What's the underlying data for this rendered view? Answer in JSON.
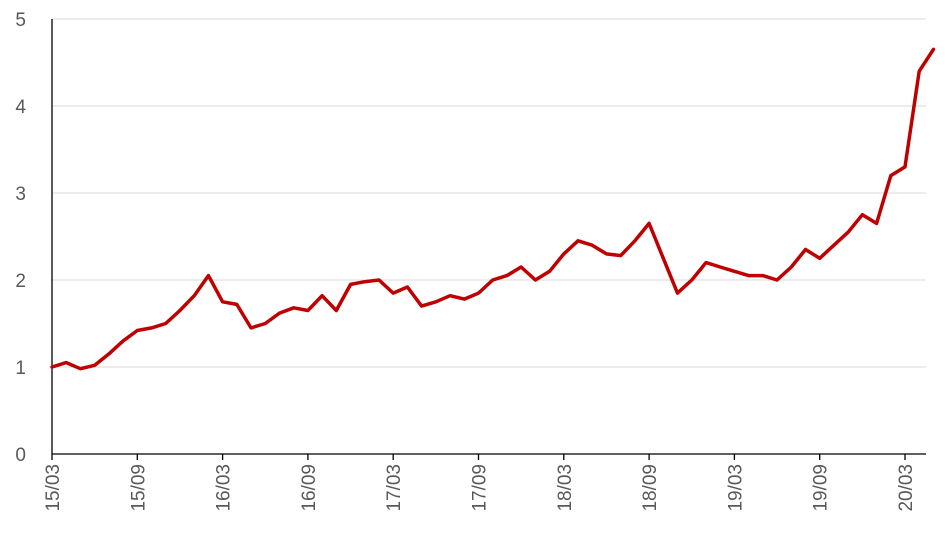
{
  "chart_data": {
    "type": "line",
    "title": "",
    "xlabel": "",
    "ylabel": "",
    "ylim": [
      0,
      5
    ],
    "yticks": [
      0,
      1,
      2,
      3,
      4,
      5
    ],
    "x_ticks": [
      "15/03",
      "15/09",
      "16/03",
      "16/09",
      "17/03",
      "17/09",
      "18/03",
      "18/09",
      "19/03",
      "19/09",
      "20/03"
    ],
    "grid": "horizontal",
    "legend": "none",
    "series": [
      {
        "color": "#c00000",
        "x": [
          "15/03",
          "15/04",
          "15/05",
          "15/06",
          "15/07",
          "15/08",
          "15/09",
          "15/10",
          "15/11",
          "15/12",
          "16/01",
          "16/02",
          "16/03",
          "16/04",
          "16/05",
          "16/06",
          "16/07",
          "16/08",
          "16/09",
          "16/10",
          "16/11",
          "16/12",
          "17/01",
          "17/02",
          "17/03",
          "17/04",
          "17/05",
          "17/06",
          "17/07",
          "17/08",
          "17/09",
          "17/10",
          "17/11",
          "17/12",
          "18/01",
          "18/02",
          "18/03",
          "18/04",
          "18/05",
          "18/06",
          "18/07",
          "18/08",
          "18/09",
          "18/10",
          "18/11",
          "18/12",
          "19/01",
          "19/02",
          "19/03",
          "19/04",
          "19/05",
          "19/06",
          "19/07",
          "19/08",
          "19/09",
          "19/10",
          "19/11",
          "19/12",
          "20/01",
          "20/02",
          "20/03",
          "20/04",
          "20/05"
        ],
        "values": [
          1.0,
          1.05,
          0.98,
          1.02,
          1.15,
          1.3,
          1.42,
          1.45,
          1.5,
          1.65,
          1.82,
          2.05,
          1.75,
          1.72,
          1.45,
          1.5,
          1.62,
          1.68,
          1.65,
          1.82,
          1.65,
          1.95,
          1.98,
          2.0,
          1.85,
          1.92,
          1.7,
          1.75,
          1.82,
          1.78,
          1.85,
          2.0,
          2.05,
          2.15,
          2.0,
          2.1,
          2.3,
          2.45,
          2.4,
          2.3,
          2.28,
          2.45,
          2.65,
          2.25,
          1.85,
          2.0,
          2.2,
          2.15,
          2.1,
          2.05,
          2.05,
          2.0,
          2.15,
          2.35,
          2.25,
          2.4,
          2.55,
          2.75,
          2.65,
          3.2,
          3.3,
          4.4,
          4.65
        ]
      }
    ]
  }
}
